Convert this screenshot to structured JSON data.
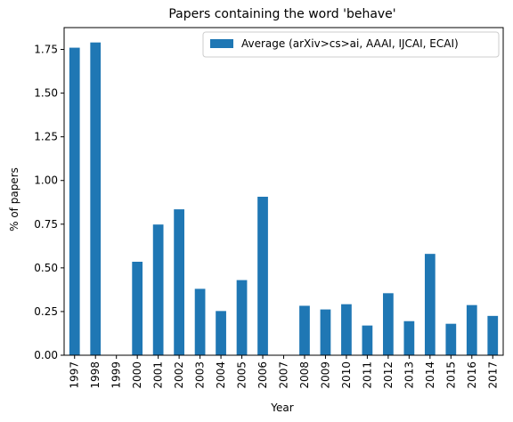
{
  "chart_data": {
    "type": "bar",
    "title": "Papers containing the word 'behave'",
    "xlabel": "Year",
    "ylabel": "% of papers",
    "categories": [
      "1997",
      "1998",
      "1999",
      "2000",
      "2001",
      "2002",
      "2003",
      "2004",
      "2005",
      "2006",
      "2007",
      "2008",
      "2009",
      "2010",
      "2011",
      "2012",
      "2013",
      "2014",
      "2015",
      "2016",
      "2017"
    ],
    "series": [
      {
        "name": "Average (arXiv>cs>ai, AAAI, IJCAI, ECAI)",
        "color": "#1f77b4",
        "values": [
          1.76,
          1.79,
          0.0,
          0.535,
          0.748,
          0.835,
          0.38,
          0.253,
          0.43,
          0.907,
          0.0,
          0.283,
          0.262,
          0.292,
          0.17,
          0.355,
          0.195,
          0.58,
          0.18,
          0.287,
          0.225
        ]
      }
    ],
    "ylim": [
      0,
      1.875
    ],
    "yticks": [
      0.0,
      0.25,
      0.5,
      0.75,
      1.0,
      1.25,
      1.5,
      1.75
    ],
    "ytick_labels": [
      "0.00",
      "0.25",
      "0.50",
      "0.75",
      "1.00",
      "1.25",
      "1.50",
      "1.75"
    ],
    "legend_position": "top-right",
    "grid": false
  }
}
